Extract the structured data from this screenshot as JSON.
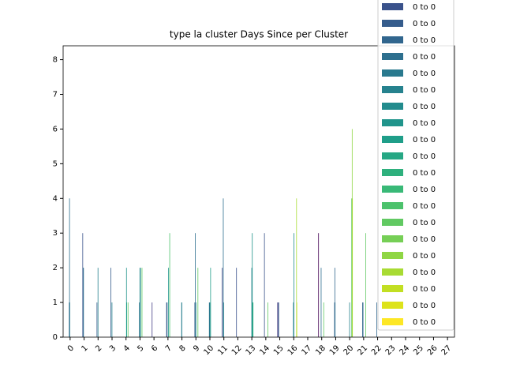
{
  "chart_data": {
    "type": "bar",
    "title": "type la cluster Days Since per Cluster",
    "categories": [
      "0",
      "1",
      "2",
      "3",
      "4",
      "5",
      "6",
      "7",
      "8",
      "9",
      "10",
      "11",
      "12",
      "13",
      "14",
      "15",
      "16",
      "17",
      "18",
      "19",
      "20",
      "21",
      "22",
      "23",
      "24",
      "25",
      "26",
      "27"
    ],
    "ylim": [
      0,
      8.4
    ],
    "yticks": [
      0,
      1,
      2,
      3,
      4,
      5,
      6,
      7,
      8
    ],
    "legend": "upper right",
    "series": [
      {
        "name": "0 to 0",
        "color": "#440154",
        "values": [
          0,
          0,
          0,
          0,
          0,
          0,
          0,
          0,
          0,
          0,
          0,
          0,
          0,
          0,
          0,
          0,
          0,
          0,
          3,
          0,
          0,
          0,
          0,
          0,
          0,
          0,
          0,
          0
        ]
      },
      {
        "name": "0 to 0",
        "color": "#45105f",
        "values": [
          0,
          0,
          0,
          0,
          0,
          0,
          0,
          0,
          0,
          0,
          0,
          0,
          0,
          0,
          0,
          0,
          0,
          0,
          0,
          0,
          0,
          0,
          0,
          0,
          0,
          0,
          0,
          0
        ]
      },
      {
        "name": "0 to 0",
        "color": "#471e6b",
        "values": [
          0,
          0,
          0,
          0,
          0,
          0,
          0,
          0,
          0,
          0,
          0,
          0,
          0,
          0,
          0,
          0,
          0,
          0,
          0,
          0,
          0,
          0,
          0,
          0,
          0,
          0,
          0,
          0
        ]
      },
      {
        "name": "0 to 0",
        "color": "#482a76",
        "values": [
          0,
          0,
          0,
          0,
          0,
          0,
          0,
          0,
          0,
          0,
          0,
          0,
          0,
          0,
          0,
          0,
          0,
          0,
          0,
          0,
          0,
          0,
          0,
          0,
          0,
          0,
          0,
          0
        ]
      },
      {
        "name": "0 to 0",
        "color": "#46347f",
        "values": [
          0,
          0,
          0,
          0,
          0,
          0,
          0,
          0,
          0,
          0,
          0,
          0,
          0,
          0,
          0,
          1,
          0,
          0,
          0,
          0,
          0,
          0,
          0,
          0,
          0,
          0,
          0,
          0
        ]
      },
      {
        "name": "0 to 0",
        "color": "#433e85",
        "values": [
          0,
          0,
          0,
          0,
          0,
          0,
          1,
          0,
          0,
          0,
          0,
          0,
          0,
          0,
          0,
          0,
          0,
          0,
          0,
          0,
          0,
          0,
          0,
          0,
          0,
          0,
          0,
          0
        ]
      },
      {
        "name": "0 to 0",
        "color": "#3f4889",
        "values": [
          0,
          0,
          0,
          0,
          0,
          0,
          0,
          0,
          0,
          0,
          0,
          2,
          0,
          0,
          0,
          1,
          0,
          0,
          0,
          0,
          0,
          0,
          0,
          0,
          0,
          0,
          0,
          0
        ]
      },
      {
        "name": "0 to 0",
        "color": "#3a528b",
        "values": [
          0,
          3,
          0,
          0,
          0,
          0,
          0,
          1,
          0,
          0,
          0,
          0,
          2,
          0,
          3,
          0,
          0,
          0,
          0,
          0,
          0,
          0,
          0,
          0,
          0,
          0,
          0,
          0
        ]
      },
      {
        "name": "0 to 0",
        "color": "#355c8c",
        "values": [
          0,
          0,
          1,
          2,
          0,
          0,
          0,
          0,
          0,
          1,
          0,
          0,
          0,
          0,
          0,
          1,
          0,
          0,
          0,
          1,
          0,
          1,
          0,
          0,
          0,
          0,
          0,
          0
        ]
      },
      {
        "name": "0 to 0",
        "color": "#31668e",
        "values": [
          1,
          2,
          0,
          0,
          0,
          0,
          0,
          1,
          0,
          0,
          0,
          0,
          0,
          0,
          0,
          0,
          0,
          0,
          0,
          2,
          0,
          0,
          1,
          0,
          0,
          0,
          0,
          0
        ]
      },
      {
        "name": "0 to 0",
        "color": "#2d6f8e",
        "values": [
          4,
          2,
          0,
          0,
          0,
          1,
          0,
          0,
          0,
          3,
          1,
          4,
          0,
          0,
          0,
          0,
          0,
          0,
          2,
          1,
          0,
          1,
          0,
          0,
          0,
          0,
          0,
          0
        ]
      },
      {
        "name": "0 to 0",
        "color": "#29798e",
        "values": [
          1,
          0,
          0,
          0,
          0,
          0,
          0,
          0,
          1,
          0,
          0,
          0,
          0,
          0,
          0,
          0,
          1,
          0,
          0,
          0,
          0,
          0,
          0,
          0,
          0,
          0,
          0,
          0
        ]
      },
      {
        "name": "0 to 0",
        "color": "#26828e",
        "values": [
          0,
          0,
          2,
          1,
          0,
          2,
          0,
          0,
          1,
          1,
          1,
          1,
          0,
          2,
          0,
          0,
          0,
          0,
          0,
          0,
          1,
          0,
          0,
          0,
          0,
          0,
          0,
          0
        ]
      },
      {
        "name": "0 to 0",
        "color": "#228b8d",
        "values": [
          0,
          0,
          0,
          0,
          0,
          0,
          0,
          0,
          0,
          0,
          0,
          0,
          0,
          0,
          0,
          0,
          3,
          0,
          0,
          0,
          0,
          0,
          0,
          0,
          0,
          0,
          0,
          0
        ]
      },
      {
        "name": "0 to 0",
        "color": "#20948b",
        "values": [
          0,
          0,
          0,
          0,
          2,
          2,
          0,
          2,
          0,
          0,
          0,
          0,
          0,
          3,
          0,
          0,
          0,
          0,
          0,
          0,
          0,
          0,
          0,
          0,
          0,
          0,
          0,
          0
        ]
      },
      {
        "name": "0 to 0",
        "color": "#1f9e89",
        "values": [
          0,
          0,
          0,
          0,
          1,
          0,
          0,
          0,
          0,
          0,
          2,
          0,
          0,
          1,
          0,
          0,
          0,
          0,
          0,
          0,
          0,
          0,
          0,
          0,
          0,
          0,
          0,
          0
        ]
      },
      {
        "name": "0 to 0",
        "color": "#26a784",
        "values": [
          0,
          0,
          0,
          0,
          0,
          0,
          0,
          0,
          0,
          0,
          0,
          0,
          0,
          0,
          0,
          0,
          0,
          0,
          0,
          0,
          0,
          0,
          0,
          0,
          0,
          0,
          0,
          0
        ]
      },
      {
        "name": "0 to 0",
        "color": "#2eb07d",
        "values": [
          0,
          0,
          0,
          0,
          0,
          0,
          0,
          0,
          0,
          0,
          0,
          0,
          0,
          1,
          0,
          0,
          0,
          0,
          0,
          0,
          0,
          0,
          0,
          0,
          0,
          0,
          0,
          0
        ]
      },
      {
        "name": "0 to 0",
        "color": "#39b977",
        "values": [
          0,
          0,
          0,
          0,
          0,
          0,
          0,
          0,
          0,
          0,
          0,
          0,
          0,
          0,
          0,
          0,
          0,
          0,
          0,
          0,
          0,
          0,
          0,
          0,
          0,
          0,
          0,
          0
        ]
      },
      {
        "name": "0 to 0",
        "color": "#4cc26c",
        "values": [
          0,
          0,
          0,
          0,
          0,
          0,
          0,
          3,
          0,
          0,
          0,
          0,
          0,
          0,
          0,
          0,
          0,
          0,
          0,
          0,
          0,
          0,
          0,
          0,
          0,
          0,
          0,
          0
        ]
      },
      {
        "name": "0 to 0",
        "color": "#61c962",
        "values": [
          0,
          0,
          0,
          0,
          1,
          2,
          0,
          0,
          0,
          2,
          0,
          0,
          0,
          0,
          1,
          0,
          0,
          0,
          1,
          0,
          4,
          3,
          0,
          0,
          0,
          0,
          0,
          0
        ]
      },
      {
        "name": "0 to 0",
        "color": "#76cf56",
        "values": [
          0,
          0,
          0,
          0,
          0,
          0,
          0,
          0,
          0,
          0,
          0,
          0,
          0,
          0,
          0,
          0,
          0,
          0,
          0,
          0,
          0,
          0,
          0,
          0,
          0,
          0,
          0,
          0
        ]
      },
      {
        "name": "0 to 0",
        "color": "#8fd644",
        "values": [
          0,
          0,
          0,
          0,
          0,
          0,
          0,
          0,
          0,
          0,
          0,
          0,
          0,
          0,
          0,
          0,
          0,
          0,
          0,
          0,
          6,
          0,
          0,
          0,
          0,
          0,
          0,
          0
        ]
      },
      {
        "name": "0 to 0",
        "color": "#a8db33",
        "values": [
          0,
          0,
          0,
          0,
          0,
          0,
          0,
          0,
          0,
          0,
          0,
          0,
          0,
          0,
          0,
          0,
          4,
          0,
          0,
          0,
          4,
          0,
          0,
          0,
          0,
          0,
          0,
          0
        ]
      },
      {
        "name": "0 to 0",
        "color": "#c2df23",
        "values": [
          0,
          0,
          0,
          0,
          0,
          0,
          0,
          0,
          0,
          0,
          0,
          0,
          0,
          0,
          0,
          0,
          1,
          0,
          0,
          0,
          0,
          0,
          0,
          0,
          0,
          0,
          0,
          0
        ]
      },
      {
        "name": "0 to 0",
        "color": "#dde31b",
        "values": [
          0,
          0,
          0,
          0,
          0,
          0,
          0,
          0,
          0,
          0,
          0,
          0,
          0,
          0,
          0,
          0,
          0,
          0,
          0,
          0,
          0,
          0,
          0,
          0,
          0,
          0,
          0,
          0
        ]
      },
      {
        "name": "0 to 0",
        "color": "#fde725",
        "values": [
          0,
          0,
          0,
          0,
          0,
          0,
          0,
          0,
          0,
          0,
          0,
          0,
          0,
          0,
          0,
          0,
          0,
          0,
          0,
          0,
          0,
          0,
          0,
          0,
          0,
          0,
          0,
          0
        ]
      }
    ]
  }
}
